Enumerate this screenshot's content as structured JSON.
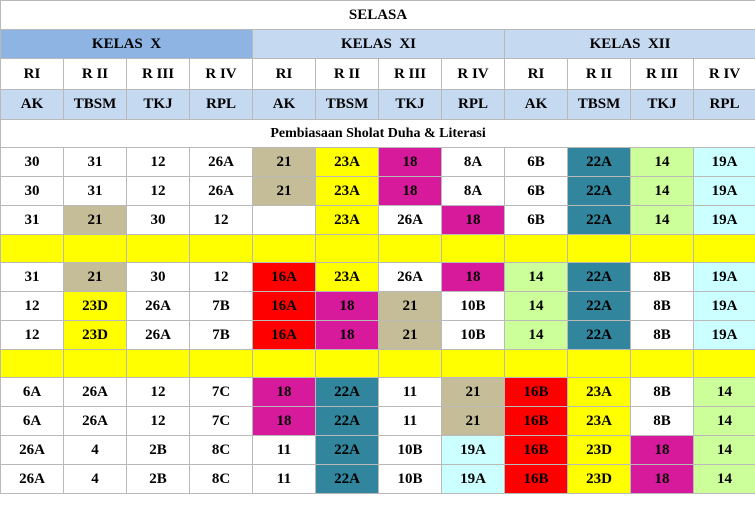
{
  "title": "SELASA",
  "classes": [
    "KELAS  X",
    "KELAS  XI",
    "KELAS  XII"
  ],
  "rooms": [
    "RI",
    "R II",
    "R III",
    "R IV",
    "RI",
    "R II",
    "R III",
    "R IV",
    "RI",
    "R II",
    "R III",
    "R IV"
  ],
  "programs": [
    "AK",
    "TBSM",
    "TKJ",
    "RPL",
    "AK",
    "TBSM",
    "TKJ",
    "RPL",
    "AK",
    "TBSM",
    "TKJ",
    "RPL"
  ],
  "note": "Pembiasaan Sholat Duha & Literasi",
  "colors": {
    "white": "#ffffff",
    "tan": "#c4bd97",
    "yellow": "#ffff00",
    "magenta": "#d7199b",
    "teal": "#31859c",
    "light_green": "#ccff99",
    "light_cyan": "#ccffff",
    "red": "#ff0000"
  },
  "rows": [
    {
      "type": "data",
      "cells": [
        {
          "v": "30",
          "c": "white"
        },
        {
          "v": "31",
          "c": "white"
        },
        {
          "v": "12",
          "c": "white"
        },
        {
          "v": "26A",
          "c": "white"
        },
        {
          "v": "21",
          "c": "tan"
        },
        {
          "v": "23A",
          "c": "yellow"
        },
        {
          "v": "18",
          "c": "magenta"
        },
        {
          "v": "8A",
          "c": "white"
        },
        {
          "v": "6B",
          "c": "white"
        },
        {
          "v": "22A",
          "c": "teal"
        },
        {
          "v": "14",
          "c": "light_green"
        },
        {
          "v": "19A",
          "c": "light_cyan"
        }
      ]
    },
    {
      "type": "data",
      "cells": [
        {
          "v": "30",
          "c": "white"
        },
        {
          "v": "31",
          "c": "white"
        },
        {
          "v": "12",
          "c": "white"
        },
        {
          "v": "26A",
          "c": "white"
        },
        {
          "v": "21",
          "c": "tan"
        },
        {
          "v": "23A",
          "c": "yellow"
        },
        {
          "v": "18",
          "c": "magenta"
        },
        {
          "v": "8A",
          "c": "white"
        },
        {
          "v": "6B",
          "c": "white"
        },
        {
          "v": "22A",
          "c": "teal"
        },
        {
          "v": "14",
          "c": "light_green"
        },
        {
          "v": "19A",
          "c": "light_cyan"
        }
      ]
    },
    {
      "type": "data",
      "cells": [
        {
          "v": "31",
          "c": "white"
        },
        {
          "v": "21",
          "c": "tan"
        },
        {
          "v": "30",
          "c": "white"
        },
        {
          "v": "12",
          "c": "white"
        },
        {
          "v": "",
          "c": "white"
        },
        {
          "v": "23A",
          "c": "yellow"
        },
        {
          "v": "26A",
          "c": "white"
        },
        {
          "v": "18",
          "c": "magenta"
        },
        {
          "v": "6B",
          "c": "white"
        },
        {
          "v": "22A",
          "c": "teal"
        },
        {
          "v": "14",
          "c": "light_green"
        },
        {
          "v": "19A",
          "c": "light_cyan"
        }
      ]
    },
    {
      "type": "break"
    },
    {
      "type": "data",
      "cells": [
        {
          "v": "31",
          "c": "white"
        },
        {
          "v": "21",
          "c": "tan"
        },
        {
          "v": "30",
          "c": "white"
        },
        {
          "v": "12",
          "c": "white"
        },
        {
          "v": "16A",
          "c": "red"
        },
        {
          "v": "23A",
          "c": "yellow"
        },
        {
          "v": "26A",
          "c": "white"
        },
        {
          "v": "18",
          "c": "magenta"
        },
        {
          "v": "14",
          "c": "light_green"
        },
        {
          "v": "22A",
          "c": "teal"
        },
        {
          "v": "8B",
          "c": "white"
        },
        {
          "v": "19A",
          "c": "light_cyan"
        }
      ]
    },
    {
      "type": "data",
      "cells": [
        {
          "v": "12",
          "c": "white"
        },
        {
          "v": "23D",
          "c": "yellow"
        },
        {
          "v": "26A",
          "c": "white"
        },
        {
          "v": "7B",
          "c": "white"
        },
        {
          "v": "16A",
          "c": "red"
        },
        {
          "v": "18",
          "c": "magenta"
        },
        {
          "v": "21",
          "c": "tan"
        },
        {
          "v": "10B",
          "c": "white"
        },
        {
          "v": "14",
          "c": "light_green"
        },
        {
          "v": "22A",
          "c": "teal"
        },
        {
          "v": "8B",
          "c": "white"
        },
        {
          "v": "19A",
          "c": "light_cyan"
        }
      ]
    },
    {
      "type": "data",
      "cells": [
        {
          "v": "12",
          "c": "white"
        },
        {
          "v": "23D",
          "c": "yellow"
        },
        {
          "v": "26A",
          "c": "white"
        },
        {
          "v": "7B",
          "c": "white"
        },
        {
          "v": "16A",
          "c": "red"
        },
        {
          "v": "18",
          "c": "magenta"
        },
        {
          "v": "21",
          "c": "tan"
        },
        {
          "v": "10B",
          "c": "white"
        },
        {
          "v": "14",
          "c": "light_green"
        },
        {
          "v": "22A",
          "c": "teal"
        },
        {
          "v": "8B",
          "c": "white"
        },
        {
          "v": "19A",
          "c": "light_cyan"
        }
      ]
    },
    {
      "type": "break"
    },
    {
      "type": "data",
      "cells": [
        {
          "v": "6A",
          "c": "white"
        },
        {
          "v": "26A",
          "c": "white"
        },
        {
          "v": "12",
          "c": "white"
        },
        {
          "v": "7C",
          "c": "white"
        },
        {
          "v": "18",
          "c": "magenta"
        },
        {
          "v": "22A",
          "c": "teal"
        },
        {
          "v": "11",
          "c": "white"
        },
        {
          "v": "21",
          "c": "tan"
        },
        {
          "v": "16B",
          "c": "red"
        },
        {
          "v": "23A",
          "c": "yellow"
        },
        {
          "v": "8B",
          "c": "white"
        },
        {
          "v": "14",
          "c": "light_green"
        }
      ]
    },
    {
      "type": "data",
      "cells": [
        {
          "v": "6A",
          "c": "white"
        },
        {
          "v": "26A",
          "c": "white"
        },
        {
          "v": "12",
          "c": "white"
        },
        {
          "v": "7C",
          "c": "white"
        },
        {
          "v": "18",
          "c": "magenta"
        },
        {
          "v": "22A",
          "c": "teal"
        },
        {
          "v": "11",
          "c": "white"
        },
        {
          "v": "21",
          "c": "tan"
        },
        {
          "v": "16B",
          "c": "red"
        },
        {
          "v": "23A",
          "c": "yellow"
        },
        {
          "v": "8B",
          "c": "white"
        },
        {
          "v": "14",
          "c": "light_green"
        }
      ]
    },
    {
      "type": "data",
      "cells": [
        {
          "v": "26A",
          "c": "white"
        },
        {
          "v": "4",
          "c": "white"
        },
        {
          "v": "2B",
          "c": "white"
        },
        {
          "v": "8C",
          "c": "white"
        },
        {
          "v": "11",
          "c": "white"
        },
        {
          "v": "22A",
          "c": "teal"
        },
        {
          "v": "10B",
          "c": "white"
        },
        {
          "v": "19A",
          "c": "light_cyan"
        },
        {
          "v": "16B",
          "c": "red"
        },
        {
          "v": "23D",
          "c": "yellow"
        },
        {
          "v": "18",
          "c": "magenta"
        },
        {
          "v": "14",
          "c": "light_green"
        }
      ]
    },
    {
      "type": "data",
      "cells": [
        {
          "v": "26A",
          "c": "white"
        },
        {
          "v": "4",
          "c": "white"
        },
        {
          "v": "2B",
          "c": "white"
        },
        {
          "v": "8C",
          "c": "white"
        },
        {
          "v": "11",
          "c": "white"
        },
        {
          "v": "22A",
          "c": "teal"
        },
        {
          "v": "10B",
          "c": "white"
        },
        {
          "v": "19A",
          "c": "light_cyan"
        },
        {
          "v": "16B",
          "c": "red"
        },
        {
          "v": "23D",
          "c": "yellow"
        },
        {
          "v": "18",
          "c": "magenta"
        },
        {
          "v": "14",
          "c": "light_green"
        }
      ]
    }
  ]
}
